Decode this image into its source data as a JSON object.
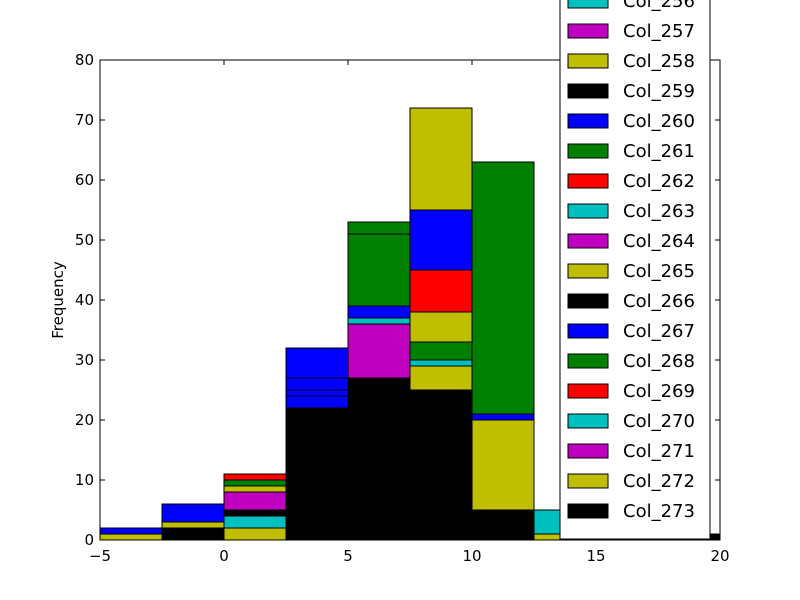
{
  "chart_data": {
    "type": "bar",
    "stacked": true,
    "title": "",
    "xlabel": "",
    "ylabel": "Frequency",
    "xlim": [
      -5,
      20
    ],
    "ylim": [
      0,
      80
    ],
    "xticks": [
      -5,
      0,
      5,
      10,
      15,
      20
    ],
    "yticks": [
      0,
      10,
      20,
      30,
      40,
      50,
      60,
      70,
      80
    ],
    "bins": [
      {
        "x0": -5.0,
        "x1": -2.5,
        "total": 2
      },
      {
        "x0": -2.5,
        "x1": 0.0,
        "total": 6
      },
      {
        "x0": 0.0,
        "x1": 2.5,
        "total": 11
      },
      {
        "x0": 2.5,
        "x1": 5.0,
        "total": 32
      },
      {
        "x0": 5.0,
        "x1": 7.5,
        "total": 53
      },
      {
        "x0": 7.5,
        "x1": 10.0,
        "total": 72
      },
      {
        "x0": 10.0,
        "x1": 12.5,
        "total": 63
      },
      {
        "x0": 12.5,
        "x1": 15.0,
        "total": 5
      },
      {
        "x0": 15.0,
        "x1": 17.5,
        "total": 2
      },
      {
        "x0": 17.5,
        "x1": 20.0,
        "total": 1
      }
    ],
    "segments": [
      {
        "bin": 0,
        "y0": 0,
        "y1": 1,
        "series": "Col_272"
      },
      {
        "bin": 0,
        "y0": 1,
        "y1": 2,
        "series": "Col_267"
      },
      {
        "bin": 1,
        "y0": 0,
        "y1": 2,
        "series": "Col_273"
      },
      {
        "bin": 1,
        "y0": 2,
        "y1": 3,
        "series": "Col_272"
      },
      {
        "bin": 1,
        "y0": 3,
        "y1": 6,
        "series": "Col_267"
      },
      {
        "bin": 2,
        "y0": 0,
        "y1": 2,
        "series": "Col_272"
      },
      {
        "bin": 2,
        "y0": 2,
        "y1": 4,
        "series": "Col_270"
      },
      {
        "bin": 2,
        "y0": 4,
        "y1": 5,
        "series": "Col_266"
      },
      {
        "bin": 2,
        "y0": 5,
        "y1": 8,
        "series": "Col_264"
      },
      {
        "bin": 2,
        "y0": 8,
        "y1": 9,
        "series": "Col_265"
      },
      {
        "bin": 2,
        "y0": 9,
        "y1": 10,
        "series": "Col_268"
      },
      {
        "bin": 2,
        "y0": 10,
        "y1": 11,
        "series": "Col_269"
      },
      {
        "bin": 3,
        "y0": 0,
        "y1": 22,
        "series": "Col_273"
      },
      {
        "bin": 3,
        "y0": 22,
        "y1": 24,
        "series": "Col_267"
      },
      {
        "bin": 3,
        "y0": 24,
        "y1": 25,
        "series": "Col_260"
      },
      {
        "bin": 3,
        "y0": 25,
        "y1": 27,
        "series": "Col_267"
      },
      {
        "bin": 3,
        "y0": 27,
        "y1": 32,
        "series": "Col_260"
      },
      {
        "bin": 4,
        "y0": 0,
        "y1": 27,
        "series": "Col_273"
      },
      {
        "bin": 4,
        "y0": 27,
        "y1": 36,
        "series": "Col_271"
      },
      {
        "bin": 4,
        "y0": 36,
        "y1": 37,
        "series": "Col_270"
      },
      {
        "bin": 4,
        "y0": 37,
        "y1": 39,
        "series": "Col_267"
      },
      {
        "bin": 4,
        "y0": 39,
        "y1": 51,
        "series": "Col_268"
      },
      {
        "bin": 4,
        "y0": 51,
        "y1": 53,
        "series": "Col_261"
      },
      {
        "bin": 5,
        "y0": 0,
        "y1": 25,
        "series": "Col_273"
      },
      {
        "bin": 5,
        "y0": 25,
        "y1": 29,
        "series": "Col_272"
      },
      {
        "bin": 5,
        "y0": 29,
        "y1": 30,
        "series": "Col_270"
      },
      {
        "bin": 5,
        "y0": 30,
        "y1": 33,
        "series": "Col_268"
      },
      {
        "bin": 5,
        "y0": 33,
        "y1": 38,
        "series": "Col_265"
      },
      {
        "bin": 5,
        "y0": 38,
        "y1": 45,
        "series": "Col_262"
      },
      {
        "bin": 5,
        "y0": 45,
        "y1": 55,
        "series": "Col_260"
      },
      {
        "bin": 5,
        "y0": 55,
        "y1": 72,
        "series": "Col_258"
      },
      {
        "bin": 6,
        "y0": 0,
        "y1": 5,
        "series": "Col_273"
      },
      {
        "bin": 6,
        "y0": 5,
        "y1": 20,
        "series": "Col_272"
      },
      {
        "bin": 6,
        "y0": 20,
        "y1": 21,
        "series": "Col_267"
      },
      {
        "bin": 6,
        "y0": 21,
        "y1": 63,
        "series": "Col_268"
      },
      {
        "bin": 7,
        "y0": 0,
        "y1": 1,
        "series": "Col_272"
      },
      {
        "bin": 7,
        "y0": 1,
        "y1": 5,
        "series": "Col_270"
      },
      {
        "bin": 8,
        "y0": 0,
        "y1": 1,
        "series": "Col_273"
      },
      {
        "bin": 8,
        "y0": 1,
        "y1": 2,
        "series": "Col_271"
      },
      {
        "bin": 9,
        "y0": 0,
        "y1": 1,
        "series": "Col_273"
      }
    ],
    "legend": {
      "placement": "top-right",
      "entries": [
        {
          "name": "Col_256",
          "color": "#00bfbf"
        },
        {
          "name": "Col_257",
          "color": "#bf00bf"
        },
        {
          "name": "Col_258",
          "color": "#bfbf00"
        },
        {
          "name": "Col_259",
          "color": "#000000"
        },
        {
          "name": "Col_260",
          "color": "#0000ff"
        },
        {
          "name": "Col_261",
          "color": "#008000"
        },
        {
          "name": "Col_262",
          "color": "#ff0000"
        },
        {
          "name": "Col_263",
          "color": "#00bfbf"
        },
        {
          "name": "Col_264",
          "color": "#bf00bf"
        },
        {
          "name": "Col_265",
          "color": "#bfbf00"
        },
        {
          "name": "Col_266",
          "color": "#000000"
        },
        {
          "name": "Col_267",
          "color": "#0000ff"
        },
        {
          "name": "Col_268",
          "color": "#008000"
        },
        {
          "name": "Col_269",
          "color": "#ff0000"
        },
        {
          "name": "Col_270",
          "color": "#00bfbf"
        },
        {
          "name": "Col_271",
          "color": "#bf00bf"
        },
        {
          "name": "Col_272",
          "color": "#bfbf00"
        },
        {
          "name": "Col_273",
          "color": "#000000"
        }
      ]
    }
  }
}
